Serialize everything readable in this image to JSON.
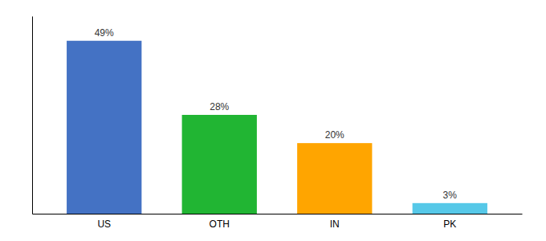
{
  "chart_data": {
    "type": "bar",
    "categories": [
      "US",
      "OTH",
      "IN",
      "PK"
    ],
    "values": [
      49,
      28,
      20,
      3
    ],
    "value_labels": [
      "49%",
      "28%",
      "20%",
      "3%"
    ],
    "colors": [
      "#4472C4",
      "#21B533",
      "#FFA500",
      "#56C8E8"
    ],
    "ylim": [
      0,
      56
    ],
    "data_labels": true,
    "tick_labels": "x"
  }
}
